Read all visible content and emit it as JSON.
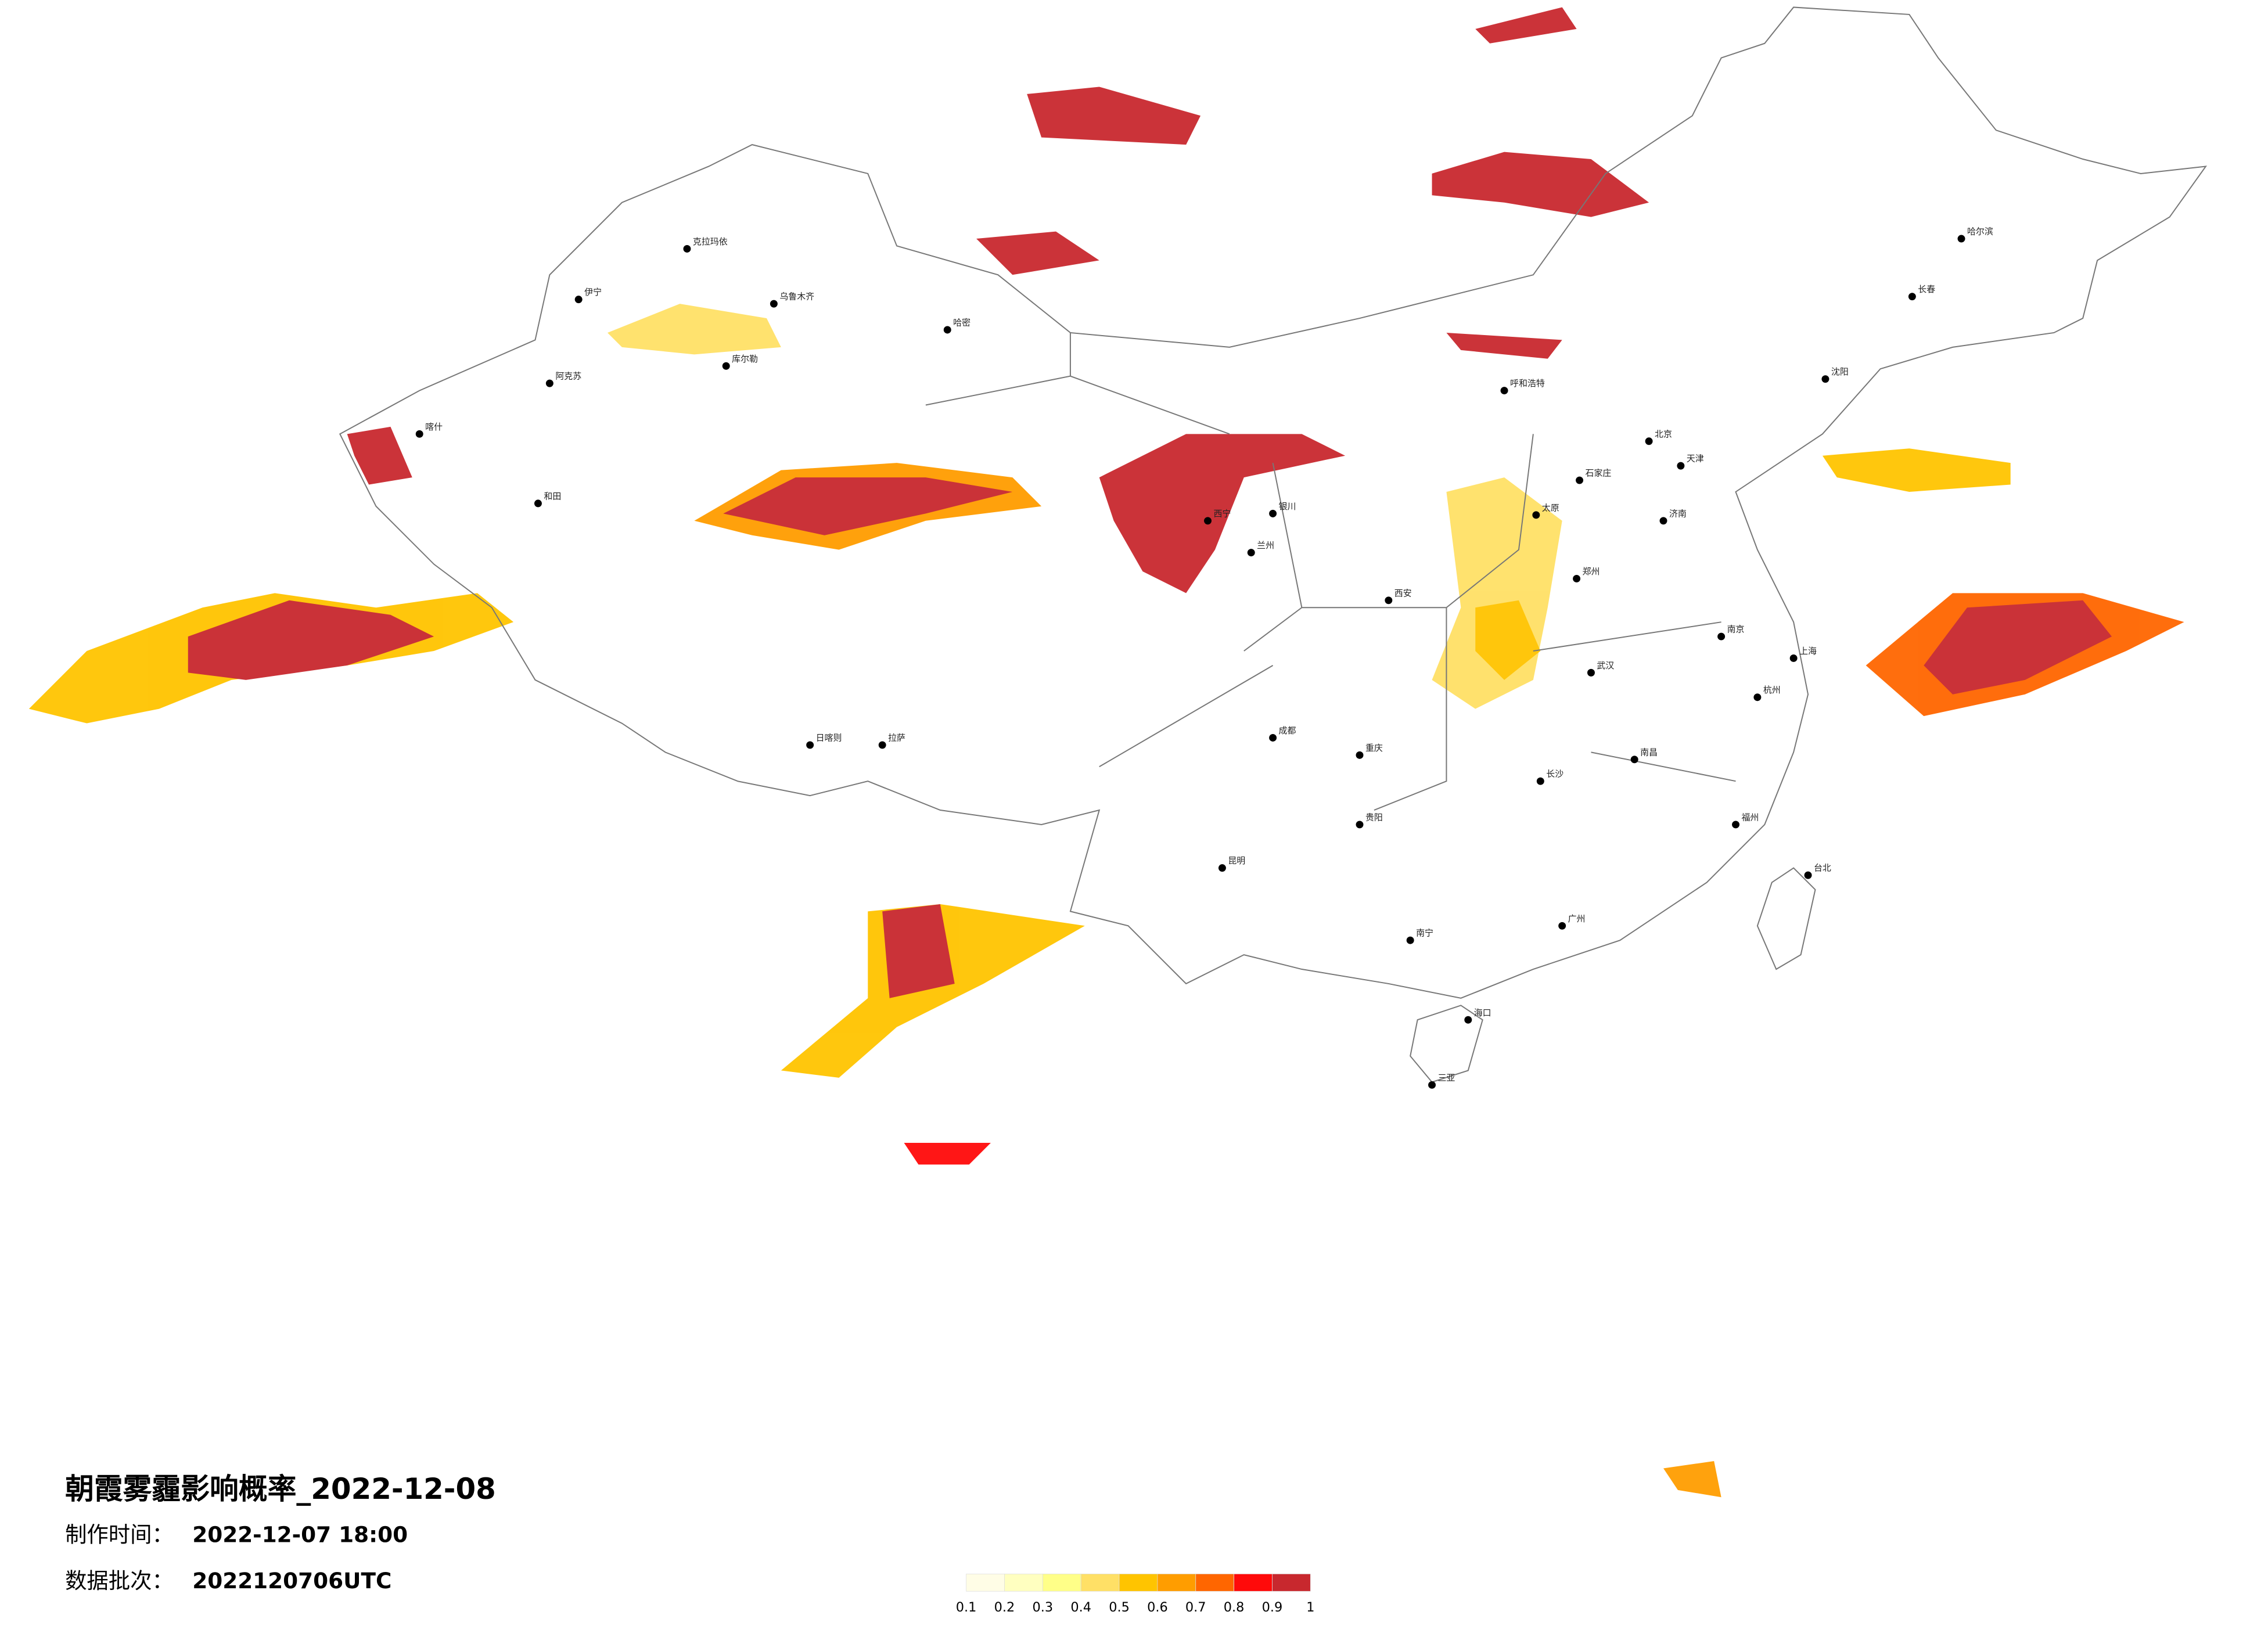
{
  "title": "朝霞雾霾影响概率_2022-12-08",
  "make_time_label": "制作时间：",
  "make_time": "2022-12-07 18:00",
  "batch_label": "数据批次：",
  "batch": "2022120706UTC",
  "legend": {
    "ticks": [
      0.1,
      0.2,
      0.3,
      0.4,
      0.5,
      0.6,
      0.7,
      0.8,
      0.9,
      1
    ],
    "colors": [
      "#fffde6",
      "#ffffc0",
      "#ffff88",
      "#ffe066",
      "#ffc400",
      "#ff9d00",
      "#ff6600",
      "#ff0a0a",
      "#c8282e"
    ]
  },
  "cities": [
    "乌鲁木齐",
    "克拉玛依",
    "伊宁",
    "阿克苏",
    "喀什",
    "和田",
    "库尔勒",
    "哈密",
    "拉萨",
    "日喀则",
    "西宁",
    "兰州",
    "银川",
    "呼和浩特",
    "北京",
    "天津",
    "石家庄",
    "太原",
    "济南",
    "郑州",
    "西安",
    "成都",
    "重庆",
    "武汉",
    "长沙",
    "南京",
    "上海",
    "杭州",
    "福州",
    "南昌",
    "广州",
    "南宁",
    "贵阳",
    "昆明",
    "海口",
    "沈阳",
    "长春",
    "哈尔滨",
    "台北",
    "三亚"
  ]
}
